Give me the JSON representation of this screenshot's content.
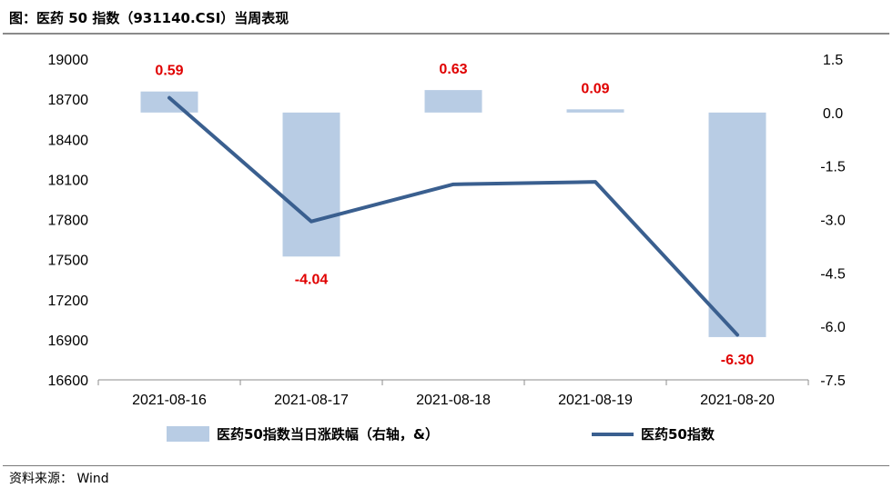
{
  "title": "图：医药 50 指数（931140.CSI）当周表现",
  "source": "资料来源： Wind",
  "colors": {
    "bar": "#b8cce4",
    "line": "#3a5f8f",
    "label": "#e00000"
  },
  "chart_data": {
    "type": "bar+line",
    "categories": [
      "2021-08-16",
      "2021-08-17",
      "2021-08-18",
      "2021-08-19",
      "2021-08-20"
    ],
    "series": [
      {
        "name": "医药50指数当日涨跌幅（右轴，&）",
        "type": "bar",
        "axis": "right",
        "values": [
          0.59,
          -4.04,
          0.63,
          0.09,
          -6.3
        ],
        "labels": [
          "0.59",
          "-4.04",
          "0.63",
          "0.09",
          "-6.30"
        ]
      },
      {
        "name": "医药50指数",
        "type": "line",
        "axis": "left",
        "values": [
          18710,
          17785,
          18063,
          18081,
          16937
        ]
      }
    ],
    "y_left": {
      "min": 16600,
      "max": 19000,
      "ticks": [
        "19000",
        "18700",
        "18400",
        "18100",
        "17800",
        "17500",
        "17200",
        "16900",
        "16600"
      ]
    },
    "y_right": {
      "min": -7.5,
      "max": 1.5,
      "ticks": [
        "1.5",
        "0.0",
        "-1.5",
        "-3.0",
        "-4.5",
        "-6.0",
        "-7.5"
      ]
    },
    "grid": false,
    "legend_position": "bottom"
  }
}
